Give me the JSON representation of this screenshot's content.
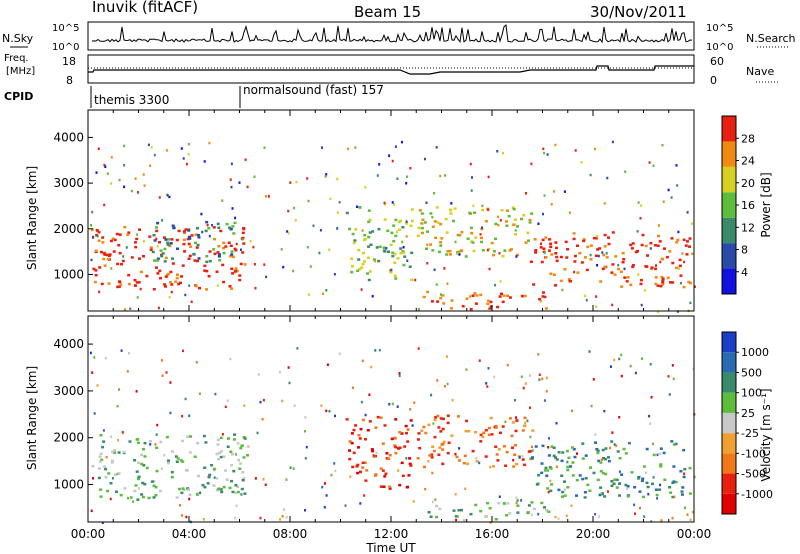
{
  "header": {
    "radar": "Inuvik (fitACF)",
    "beam": "Beam 15",
    "date": "30/Nov/2011"
  },
  "status_panels": {
    "nsky_label": "N.Sky",
    "nsearch_label": "N.Search",
    "freq_label_1": "Freq.",
    "freq_label_2": "[MHz]",
    "nave_label": "Nave",
    "cpid_label": "CPID",
    "nsky_ticks": [
      "10^5",
      "10^0"
    ],
    "nsearch_ticks": [
      "10^5",
      "10^0"
    ],
    "freq_ticks": [
      "18",
      "8"
    ],
    "nave_ticks": [
      "60",
      "0"
    ],
    "cpid_segments": [
      {
        "label": "themis 3300",
        "start_hour": 0.0
      },
      {
        "label": "normalsound (fast) 157",
        "start_hour": 6.0
      }
    ]
  },
  "chart_data": [
    {
      "type": "heatmap",
      "name": "power",
      "ylabel": "Slant Range [km]",
      "yticks": [
        "1000",
        "2000",
        "3000",
        "4000"
      ],
      "ylim": [
        200,
        4600
      ],
      "xlim": [
        0,
        24
      ],
      "xticks": [
        "00:00",
        "04:00",
        "08:00",
        "12:00",
        "16:00",
        "20:00",
        "00:00"
      ],
      "colorbar_label": "Power [dB]",
      "colorbar_ticks": [
        "4",
        "8",
        "12",
        "16",
        "20",
        "24",
        "28"
      ],
      "colorbar_colors": [
        "#1010e0",
        "#2a4aa8",
        "#3a8a6a",
        "#5cbc3c",
        "#d8d020",
        "#f08a10",
        "#e82010"
      ],
      "regions": [
        {
          "t0": 0.1,
          "t1": 6.3,
          "r0": 700,
          "r1": 2100,
          "level": 6
        },
        {
          "t0": 2.5,
          "t1": 5.9,
          "r0": 1300,
          "r1": 2200,
          "level": 2
        },
        {
          "t0": 10.2,
          "t1": 12.8,
          "r0": 900,
          "r1": 2500,
          "level": 3
        },
        {
          "t0": 13.0,
          "t1": 17.6,
          "r0": 1400,
          "r1": 2500,
          "level": 4
        },
        {
          "t0": 17.5,
          "t1": 23.8,
          "r0": 750,
          "r1": 1950,
          "level": 6
        },
        {
          "t0": 13.2,
          "t1": 18.2,
          "r0": 250,
          "r1": 650,
          "level": 6
        }
      ]
    },
    {
      "type": "heatmap",
      "name": "velocity",
      "ylabel": "Slant Range [km]",
      "yticks": [
        "1000",
        "2000",
        "3000",
        "4000"
      ],
      "ylim": [
        200,
        4600
      ],
      "xlim": [
        0,
        24
      ],
      "xticks": [
        "00:00",
        "04:00",
        "08:00",
        "12:00",
        "16:00",
        "20:00",
        "00:00"
      ],
      "xlabel": "Time UT",
      "colorbar_label": "Velocity [m s⁻¹]",
      "colorbar_ticks": [
        "1000",
        "500",
        "100",
        "25",
        "-25",
        "-100",
        "-500",
        "-1000"
      ],
      "colorbar_colors": [
        "#1a3ec8",
        "#2a6ab0",
        "#3a8a6a",
        "#5cbc3c",
        "#c8c8c8",
        "#f0a030",
        "#f07818",
        "#e82010",
        "#e00000"
      ],
      "regions": [
        {
          "t0": 0.1,
          "t1": 6.3,
          "r0": 700,
          "r1": 2100,
          "level": 5
        },
        {
          "t0": 10.2,
          "t1": 12.8,
          "r0": 900,
          "r1": 2500,
          "level": 1
        },
        {
          "t0": 13.0,
          "t1": 17.6,
          "r0": 1400,
          "r1": 2500,
          "level": 2
        },
        {
          "t0": 17.5,
          "t1": 23.8,
          "r0": 750,
          "r1": 1950,
          "level": 6
        },
        {
          "t0": 13.2,
          "t1": 18.2,
          "r0": 250,
          "r1": 650,
          "level": 5
        }
      ]
    }
  ]
}
